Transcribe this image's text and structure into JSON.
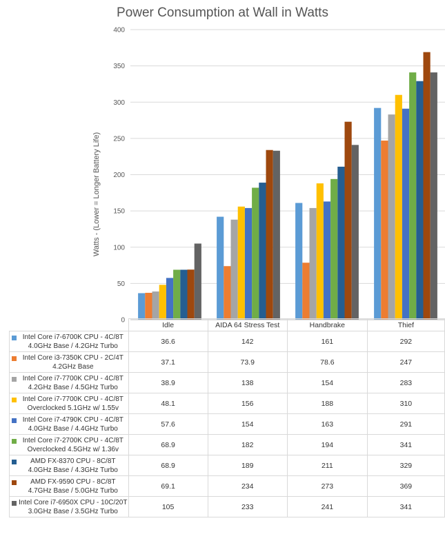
{
  "chart_data": {
    "type": "bar",
    "title": "Power Consumption at Wall in Watts",
    "xlabel": "",
    "ylabel": "Watts - (Lower = Longer Battery Life)",
    "ylim": [
      0,
      400
    ],
    "yticks": [
      "0",
      "50",
      "100",
      "150",
      "200",
      "250",
      "300",
      "350",
      "400"
    ],
    "grid": true,
    "legend": "table below chart",
    "categories": [
      "Idle",
      "AIDA 64 Stress Test",
      "Handbrake",
      "Thief"
    ],
    "series": [
      {
        "name": "Intel Core i7-6700K CPU - 4C/8T\n4.0GHz Base / 4.2GHz Turbo",
        "color": "#5b9bd5",
        "values": [
          36.6,
          142,
          161,
          292
        ],
        "labels": [
          "36.6",
          "142",
          "161",
          "292"
        ]
      },
      {
        "name": "Intel Core i3-7350K CPU - 2C/4T\n4.2GHz Base",
        "color": "#ed7d31",
        "values": [
          37.1,
          73.9,
          78.6,
          247
        ],
        "labels": [
          "37.1",
          "73.9",
          "78.6",
          "247"
        ]
      },
      {
        "name": "Intel Core i7-7700K CPU - 4C/8T\n4.2GHz Base / 4.5GHz Turbo",
        "color": "#a5a5a5",
        "values": [
          38.9,
          138,
          154,
          283
        ],
        "labels": [
          "38.9",
          "138",
          "154",
          "283"
        ]
      },
      {
        "name": "Intel Core i7-7700K CPU - 4C/8T\nOverclocked 5.1GHz w/ 1.55v",
        "color": "#ffc000",
        "values": [
          48.1,
          156,
          188,
          310
        ],
        "labels": [
          "48.1",
          "156",
          "188",
          "310"
        ]
      },
      {
        "name": "Intel Core i7-4790K CPU - 4C/8T\n4.0GHz Base / 4.4GHz Turbo",
        "color": "#4472c4",
        "values": [
          57.6,
          154,
          163,
          291
        ],
        "labels": [
          "57.6",
          "154",
          "163",
          "291"
        ]
      },
      {
        "name": "Intel Core i7-2700K CPU - 4C/8T\nOverclocked 4.5GHz w/ 1.36v",
        "color": "#70ad47",
        "values": [
          68.9,
          182,
          194,
          341
        ],
        "labels": [
          "68.9",
          "182",
          "194",
          "341"
        ]
      },
      {
        "name": "AMD FX-8370 CPU - 8C/8T\n4.0GHz Base / 4.3GHz Turbo",
        "color": "#255e91",
        "values": [
          68.9,
          189,
          211,
          329
        ],
        "labels": [
          "68.9",
          "189",
          "211",
          "329"
        ]
      },
      {
        "name": "AMD FX-9590 CPU - 8C/8T\n4.7GHz Base / 5.0GHz Turbo",
        "color": "#9e480e",
        "values": [
          69.1,
          234,
          273,
          369
        ],
        "labels": [
          "69.1",
          "234",
          "273",
          "369"
        ]
      },
      {
        "name": "Intel Core i7-6950X CPU - 10C/20T\n3.0GHz Base / 3.5GHz Turbo",
        "color": "#636363",
        "values": [
          105,
          233,
          241,
          341
        ],
        "labels": [
          "105",
          "233",
          "241",
          "341"
        ]
      }
    ]
  }
}
